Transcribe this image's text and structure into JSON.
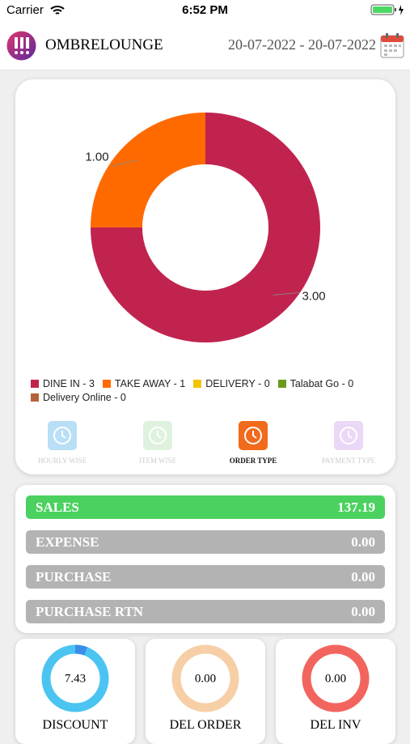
{
  "status_bar": {
    "carrier": "Carrier",
    "time": "6:52 PM"
  },
  "header": {
    "title": "OMBRELOUNGE",
    "date_range": "20-07-2022 - 20-07-2022"
  },
  "order_chart": {
    "type": "pie",
    "categories": [
      "DINE IN - 3",
      "TAKE AWAY - 1",
      "DELIVERY - 0",
      "Talabat Go - 0",
      "Delivery Online - 0"
    ],
    "values": [
      3,
      1,
      0,
      0,
      0
    ],
    "value_labels": [
      "3.00",
      "1.00",
      null,
      null,
      null
    ],
    "colors": [
      "#c1234f",
      "#ff6a00",
      "#f2c500",
      "#6a9a1c",
      "#b4623a"
    ]
  },
  "tabs": [
    "HOURLY WISE",
    "ITEM WISE",
    "ORDER TYPE",
    "PAYMENT TYPE"
  ],
  "summary": [
    {
      "label": "SALES",
      "value": "137.19"
    },
    {
      "label": "EXPENSE",
      "value": "0.00"
    },
    {
      "label": "PURCHASE",
      "value": "0.00"
    },
    {
      "label": "PURCHASE RTN",
      "value": "0.00"
    }
  ],
  "gauges": [
    {
      "value": "7.43",
      "label": "DISCOUNT"
    },
    {
      "value": "0.00",
      "label": "DEL ORDER"
    },
    {
      "value": "0.00",
      "label": "DEL INV"
    }
  ]
}
